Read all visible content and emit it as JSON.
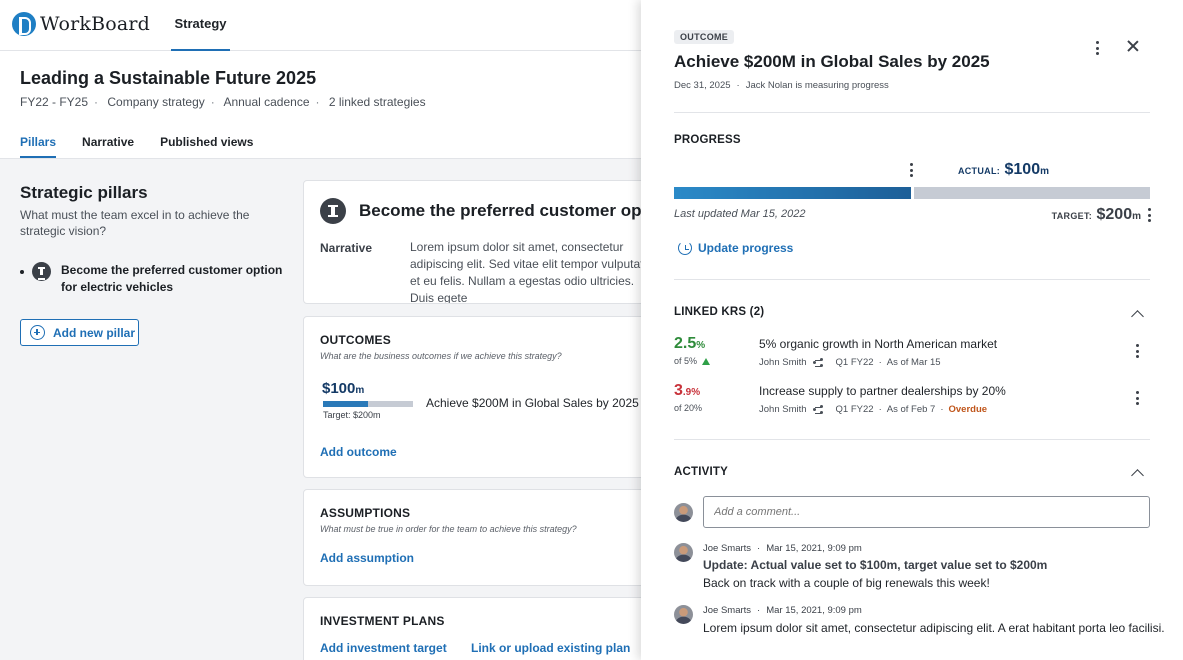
{
  "app": {
    "brand": "WorkBoard",
    "nav_tab": "Strategy"
  },
  "strategy": {
    "title": "Leading a Sustainable Future 2025",
    "meta": [
      "FY22 - FY25",
      "Company strategy",
      "Annual cadence",
      "2 linked strategies"
    ],
    "tabs": [
      "Pillars",
      "Narrative",
      "Published views"
    ],
    "active_tab": "Pillars"
  },
  "pillars": {
    "title": "Strategic pillars",
    "subtitle": "What must the team excel in to achieve the strategic vision?",
    "items": [
      {
        "label": "Become the preferred customer option for electric vehicles"
      }
    ],
    "add_label": "Add new pillar"
  },
  "pillar_card": {
    "title": "Become the preferred customer option for electric vehicles",
    "narrative_label": "Narrative",
    "narrative_text": "Lorem ipsum dolor sit amet, consectetur adipiscing elit. Sed vitae elit tempor vulputate et eu felis. Nullam a egestas odio ultricies. Duis egete"
  },
  "outcomes": {
    "title": "OUTCOMES",
    "subtitle": "What are the business outcomes if we achieve this strategy?",
    "item": {
      "value": "$100",
      "unit": "m",
      "progress": 0.5,
      "target": "Target: $200m",
      "name": "Achieve $200M in Global Sales by 2025"
    },
    "add_label": "Add outcome"
  },
  "assumptions": {
    "title": "ASSUMPTIONS",
    "subtitle": "What must be true in order for the team to achieve this strategy?",
    "add_label": "Add assumption"
  },
  "investment": {
    "title": "INVESTMENT PLANS",
    "add_target": "Add investment target",
    "link_plan": "Link or upload existing plan"
  },
  "panel": {
    "badge": "OUTCOME",
    "title": "Achieve $200M in Global Sales by 2025",
    "date": "Dec 31, 2025",
    "owner_text": "Jack Nolan is measuring progress",
    "progress": {
      "title": "PROGRESS",
      "actual_label": "ACTUAL:",
      "actual_value": "$100",
      "actual_unit": "m",
      "fraction": 0.5,
      "updated": "Last updated Mar 15, 2022",
      "target_label": "TARGET:",
      "target_value": "$200",
      "target_unit": "m",
      "update_label": "Update progress"
    },
    "linked_krs": {
      "title": "LINKED KRS (2)",
      "items": [
        {
          "pct": "2.5",
          "pct_unit": "%",
          "of": "of  5%",
          "name": "5% organic growth in North American market",
          "owner": "John Smith",
          "period": "Q1 FY22",
          "asof": "As of Mar 15",
          "status": "",
          "color": "#2e8b3a",
          "trend": "up"
        },
        {
          "pct": "3",
          "pct_unit": ".9%",
          "of": "of  20%",
          "name": "Increase supply to partner dealerships by 20%",
          "owner": "John Smith",
          "period": "Q1 FY22",
          "asof": "As of Feb 7",
          "status": "Overdue",
          "color": "#c8323a",
          "trend": ""
        }
      ]
    },
    "activity": {
      "title": "ACTIVITY",
      "comment_placeholder": "Add a comment...",
      "items": [
        {
          "author": "Joe Smarts",
          "time": "Mar 15, 2021, 9:09 pm",
          "title": "Update: Actual value set to $100m, target value set to $200m",
          "text": "Back on track with a couple of big renewals this week!"
        },
        {
          "author": "Joe Smarts",
          "time": "Mar 15, 2021, 9:09 pm",
          "title": "",
          "text": "Lorem ipsum dolor sit amet, consectetur adipiscing elit. A erat habitant porta leo facilisi."
        }
      ]
    }
  }
}
